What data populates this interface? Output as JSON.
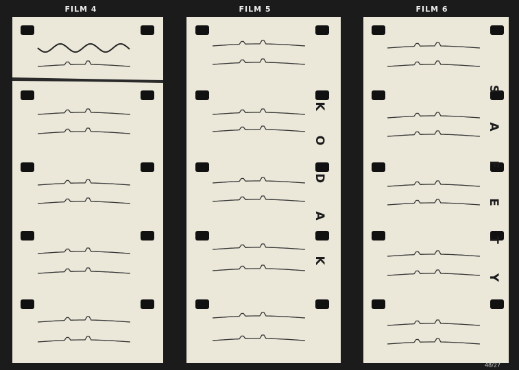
{
  "films": [
    {
      "label": "FILM 4"
    },
    {
      "label": "FILM 5"
    },
    {
      "label": "FILM 6"
    }
  ],
  "edge_text": {
    "kodak": [
      "K",
      "O",
      "D",
      "A",
      "K"
    ],
    "safety": [
      "S",
      "A",
      "F",
      "E",
      "T",
      "Y"
    ]
  },
  "corner_note": "48/27"
}
